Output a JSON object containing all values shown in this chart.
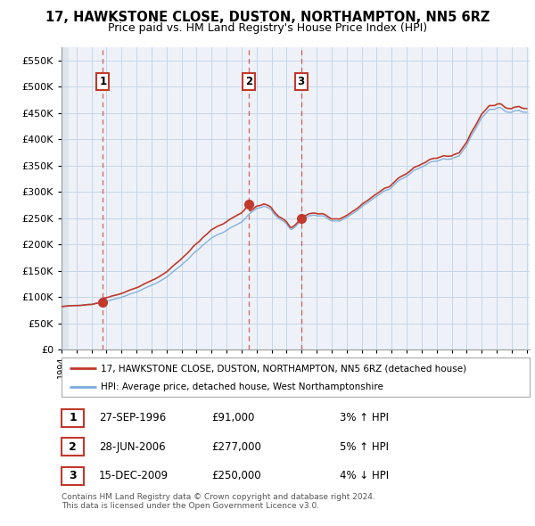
{
  "title": "17, HAWKSTONE CLOSE, DUSTON, NORTHAMPTON, NN5 6RZ",
  "subtitle": "Price paid vs. HM Land Registry's House Price Index (HPI)",
  "legend_line1": "17, HAWKSTONE CLOSE, DUSTON, NORTHAMPTON, NN5 6RZ (detached house)",
  "legend_line2": "HPI: Average price, detached house, West Northamptonshire",
  "sale_points": [
    {
      "label": "1",
      "date_str": "27-SEP-1996",
      "price": 91000,
      "year": 1996.75,
      "hpi_pct": "3% ↑ HPI"
    },
    {
      "label": "2",
      "date_str": "28-JUN-2006",
      "price": 277000,
      "year": 2006.5,
      "hpi_pct": "5% ↑ HPI"
    },
    {
      "label": "3",
      "date_str": "15-DEC-2009",
      "price": 250000,
      "year": 2009.96,
      "hpi_pct": "4% ↓ HPI"
    }
  ],
  "footer": "Contains HM Land Registry data © Crown copyright and database right 2024.\nThis data is licensed under the Open Government Licence v3.0.",
  "xmin": 1994.0,
  "xmax": 2025.2,
  "ymin": 0,
  "ymax": 575000,
  "yticks": [
    0,
    50000,
    100000,
    150000,
    200000,
    250000,
    300000,
    350000,
    400000,
    450000,
    500000,
    550000
  ],
  "hpi_color": "#7aabdc",
  "price_color": "#c0392b",
  "background_color": "#eef2f8",
  "grid_color": "#c5d5e8",
  "hatch_color": "#dde5ee"
}
